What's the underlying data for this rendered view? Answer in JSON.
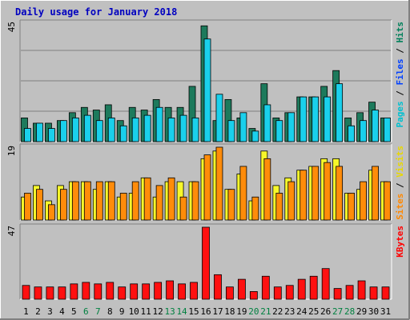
{
  "chart_data": {
    "type": "bar",
    "title": "Daily usage for January 2018",
    "categories": [
      "1",
      "2",
      "3",
      "4",
      "5",
      "6",
      "7",
      "8",
      "9",
      "10",
      "11",
      "12",
      "13",
      "14",
      "15",
      "16",
      "17",
      "18",
      "19",
      "20",
      "21",
      "22",
      "23",
      "24",
      "25",
      "26",
      "27",
      "28",
      "29",
      "30",
      "31"
    ],
    "weekend_days": [
      "6",
      "7",
      "13",
      "14",
      "20",
      "21",
      "27",
      "28"
    ],
    "panels": [
      {
        "id": "hits",
        "scale_max_label": "45",
        "ylim": [
          0,
          45
        ],
        "side_labels": [
          "Pages",
          "Files",
          "Hits"
        ],
        "series": [
          {
            "name": "Hits",
            "color": "#1d7a5c",
            "values": [
              9,
              7,
              7,
              8,
              11,
              13,
              12,
              14,
              8,
              13,
              12,
              16,
              13,
              13,
              21,
              44,
              8,
              16,
              9,
              5,
              22,
              9,
              11,
              17,
              17,
              21,
              27,
              9,
              11,
              15,
              9
            ]
          },
          {
            "name": "Files",
            "color": "#1ad0ec",
            "values": [
              5,
              7,
              5,
              8,
              9,
              10,
              8,
              9,
              6,
              9,
              10,
              13,
              9,
              10,
              9,
              39,
              18,
              8,
              11,
              4,
              14,
              8,
              11,
              17,
              17,
              17,
              22,
              6,
              8,
              12,
              9
            ]
          }
        ]
      },
      {
        "id": "visits",
        "scale_max_label": "19",
        "ylim": [
          0,
          19
        ],
        "side_labels": [
          "Sites",
          "Visits"
        ],
        "series": [
          {
            "name": "Sites",
            "color": "#f7f72a",
            "values": [
              6,
              9,
              5,
              9,
              10,
              10,
              8,
              10,
              6,
              7,
              11,
              6,
              10,
              10,
              10,
              16,
              18,
              8,
              12,
              5,
              18,
              9,
              11,
              13,
              14,
              16,
              16,
              7,
              8,
              13,
              10
            ]
          },
          {
            "name": "Visits",
            "color": "#ff8c0a",
            "values": [
              7,
              8,
              4,
              8,
              10,
              10,
              10,
              10,
              7,
              10,
              11,
              9,
              11,
              6,
              10,
              17,
              19,
              8,
              14,
              6,
              16,
              7,
              10,
              13,
              14,
              15,
              14,
              7,
              10,
              14,
              10
            ]
          }
        ]
      },
      {
        "id": "kbytes",
        "scale_max_label": "47",
        "ylim": [
          0,
          47
        ],
        "side_labels": [
          "KBytes"
        ],
        "series": [
          {
            "name": "KBytes",
            "color": "#ff1010",
            "values": [
              9,
              8,
              8,
              8,
              10,
              11,
              10,
              11,
              8,
              10,
              10,
              11,
              12,
              10,
              11,
              47,
              16,
              8,
              13,
              5,
              15,
              8,
              9,
              13,
              15,
              20,
              7,
              9,
              12,
              8,
              8
            ]
          }
        ]
      }
    ],
    "ylabel_colors": {
      "Pages": "#00c0d0",
      "Files": "#0040ff",
      "Hits": "#00805a",
      "Sites": "#ff8800",
      "Visits": "#e8d800",
      "KBytes": "#ff0000"
    },
    "grid": true
  }
}
